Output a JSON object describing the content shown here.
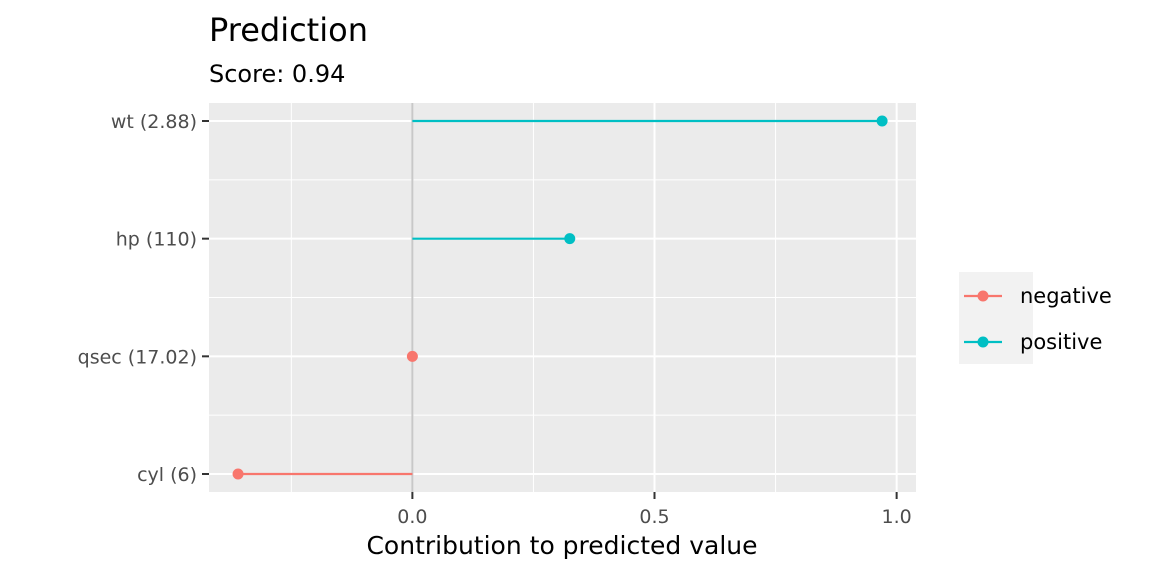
{
  "chart_data": {
    "type": "lollipop",
    "title": "Prediction",
    "subtitle": "Score: 0.94",
    "xlabel": "Contribution to predicted value",
    "ylabel": "",
    "xlim": [
      -0.42,
      1.04
    ],
    "x_ticks": [
      0.0,
      0.5,
      1.0
    ],
    "x_tick_labels": [
      "0.0",
      "0.5",
      "1.0"
    ],
    "x_minor_ticks": [
      -0.25,
      0.25,
      0.75
    ],
    "grid": true,
    "legend_position": "right",
    "categories": [
      "wt (2.88)",
      "hp (110)",
      "qsec (17.02)",
      "cyl (6)"
    ],
    "values": [
      0.97,
      0.325,
      0.0,
      -0.36
    ],
    "signs": [
      "positive",
      "positive",
      "negative",
      "negative"
    ],
    "legend": [
      {
        "name": "negative",
        "color": "#F8766D"
      },
      {
        "name": "positive",
        "color": "#00BFC4"
      }
    ],
    "colors": {
      "negative": "#F8766D",
      "positive": "#00BFC4",
      "panel": "#EBEBEB",
      "grid": "#FFFFFF",
      "zero_line": "#C8C8C8"
    }
  }
}
